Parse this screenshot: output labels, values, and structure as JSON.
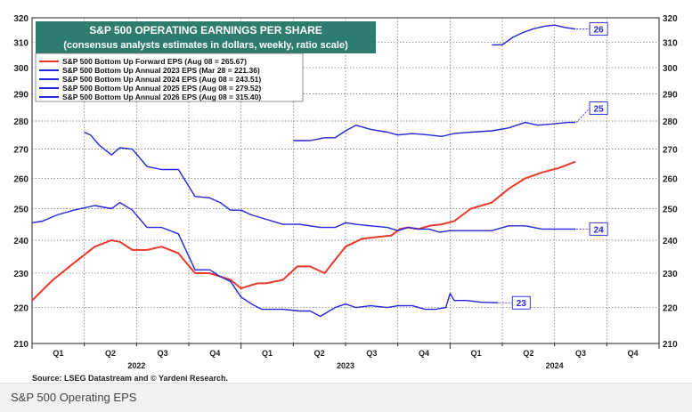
{
  "caption": "S&P 500 Operating EPS",
  "chart_data": {
    "type": "line",
    "title": "S&P 500 OPERATING EARNINGS PER SHARE",
    "subtitle": "(consensus analysts estimates in dollars, weekly, ratio scale)",
    "source": "Source: LSEG Datastream and © Yardeni Research.",
    "ylim": [
      210,
      320
    ],
    "yticks": [
      210,
      220,
      230,
      240,
      250,
      260,
      270,
      280,
      290,
      300,
      310,
      320
    ],
    "x_quarters": [
      "Q1",
      "Q2",
      "Q3",
      "Q4",
      "Q1",
      "Q2",
      "Q3",
      "Q4",
      "Q1",
      "Q2",
      "Q3",
      "Q4"
    ],
    "x_years": [
      "2022",
      "2023",
      "2024"
    ],
    "xlim": [
      2022.0,
      2025.0
    ],
    "grid": true,
    "legend_placement": "top-left",
    "series": [
      {
        "name": "S&P 500 Bottom Up Forward EPS (Aug 08 = 265.67)",
        "color": "#e8392b",
        "x": [
          2022.0,
          2022.05,
          2022.1,
          2022.2,
          2022.3,
          2022.38,
          2022.42,
          2022.48,
          2022.55,
          2022.62,
          2022.7,
          2022.78,
          2022.85,
          2022.9,
          2022.95,
          2023.0,
          2023.05,
          2023.08,
          2023.12,
          2023.2,
          2023.27,
          2023.33,
          2023.4,
          2023.45,
          2023.5,
          2023.58,
          2023.65,
          2023.72,
          2023.76,
          2023.8,
          2023.85,
          2023.9,
          2023.96,
          2024.02,
          2024.1,
          2024.2,
          2024.28,
          2024.36,
          2024.44,
          2024.52,
          2024.6
        ],
        "values": [
          222,
          225,
          228,
          233,
          238,
          240,
          239.5,
          237,
          237,
          238,
          236,
          230,
          230,
          229,
          228,
          225.5,
          226.5,
          227,
          227,
          228,
          232,
          232,
          230,
          234,
          238,
          240.5,
          241,
          241.5,
          243.5,
          244,
          243.5,
          244.5,
          245,
          246,
          250,
          252,
          256.5,
          260,
          262,
          263.5,
          265.67
        ]
      },
      {
        "name": "S&P 500 Bottom Up Annual 2023 EPS (Mar 28 = 221.36)",
        "color": "#2525d9",
        "x": [
          2022.0,
          2022.05,
          2022.12,
          2022.2,
          2022.3,
          2022.38,
          2022.42,
          2022.48,
          2022.55,
          2022.62,
          2022.7,
          2022.78,
          2022.85,
          2022.9,
          2022.95,
          2023.0,
          2023.05,
          2023.1,
          2023.2,
          2023.28,
          2023.33,
          2023.38,
          2023.45,
          2023.5,
          2023.55,
          2023.62,
          2023.7,
          2023.75,
          2023.82,
          2023.88,
          2023.93,
          2023.98,
          2024.0,
          2024.02,
          2024.08,
          2024.15,
          2024.23
        ],
        "values": [
          245.5,
          246,
          248,
          249.5,
          251,
          250,
          252,
          249.5,
          244,
          244,
          242,
          231,
          231,
          229,
          227.5,
          223,
          221,
          219.5,
          219.5,
          219,
          219,
          217.5,
          220,
          221,
          220,
          220.5,
          220,
          220.5,
          220.5,
          219.5,
          219.5,
          220,
          224,
          222,
          222,
          221.5,
          221.36
        ]
      },
      {
        "name": "S&P 500 Bottom Up Annual 2024 EPS (Aug 08 = 243.51)",
        "color": "#2525d9",
        "x": [
          2022.25,
          2022.28,
          2022.32,
          2022.38,
          2022.42,
          2022.48,
          2022.55,
          2022.62,
          2022.7,
          2022.78,
          2022.85,
          2022.9,
          2022.95,
          2023.0,
          2023.05,
          2023.1,
          2023.2,
          2023.28,
          2023.38,
          2023.45,
          2023.5,
          2023.55,
          2023.62,
          2023.7,
          2023.75,
          2023.8,
          2023.85,
          2023.9,
          2023.95,
          2024.0,
          2024.05,
          2024.1,
          2024.15,
          2024.2,
          2024.28,
          2024.36,
          2024.44,
          2024.52,
          2024.6
        ],
        "values": [
          276,
          275,
          271.5,
          268,
          270.5,
          270,
          264,
          263,
          263,
          254,
          253.5,
          252,
          249.5,
          249.5,
          248,
          247,
          245,
          245,
          244,
          244,
          245.5,
          245,
          244.5,
          244,
          243,
          244,
          243.5,
          243.5,
          242.5,
          243,
          243,
          243,
          243,
          243,
          244.5,
          244.5,
          243.5,
          243.5,
          243.51
        ]
      },
      {
        "name": "S&P 500 Bottom Up Annual 2025 EPS (Aug 08 = 279.52)",
        "color": "#2525d9",
        "x": [
          2023.25,
          2023.33,
          2023.4,
          2023.45,
          2023.5,
          2023.55,
          2023.62,
          2023.7,
          2023.75,
          2023.82,
          2023.9,
          2023.96,
          2024.02,
          2024.1,
          2024.2,
          2024.28,
          2024.36,
          2024.42,
          2024.5,
          2024.56,
          2024.6
        ],
        "values": [
          273,
          273,
          274,
          274,
          276.5,
          278.5,
          277,
          276,
          275,
          275.5,
          275,
          274.5,
          275.5,
          276,
          276.5,
          277.5,
          279.5,
          278.5,
          279,
          279.5,
          279.52
        ]
      },
      {
        "name": "S&P 500 Bottom Up Annual 2026 EPS (Aug 08 = 315.40)",
        "color": "#2525d9",
        "x": [
          2024.2,
          2024.25,
          2024.3,
          2024.35,
          2024.4,
          2024.45,
          2024.5,
          2024.55,
          2024.6
        ],
        "values": [
          309,
          309,
          312,
          314,
          315.5,
          316.5,
          317,
          316,
          315.4
        ]
      }
    ],
    "end_labels": [
      "23",
      "24",
      "25",
      "26"
    ]
  }
}
